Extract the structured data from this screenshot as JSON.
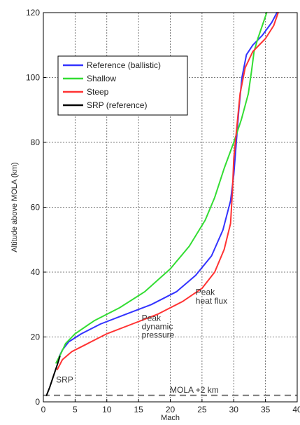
{
  "chart_data": {
    "type": "line",
    "title": "",
    "xlabel": "Mach",
    "ylabel": "Altitude above MOLA (km)",
    "xlim": [
      0,
      40
    ],
    "ylim": [
      0,
      120
    ],
    "xticks": [
      "0",
      "5",
      "10",
      "15",
      "20",
      "25",
      "30",
      "35",
      "40"
    ],
    "yticks": [
      "0",
      "20",
      "40",
      "60",
      "80",
      "100",
      "120"
    ],
    "grid": true,
    "legend_position": "top-left",
    "series": [
      {
        "name": "Reference (ballistic)",
        "color": "#3333ff",
        "x": [
          2.5,
          3,
          4,
          6,
          9,
          13,
          17,
          21,
          24,
          26.5,
          28.3,
          29.5,
          30,
          30.4,
          30.8,
          31.3,
          32,
          33,
          34.5,
          36,
          36.8
        ],
        "y": [
          14,
          16,
          18.5,
          21,
          24,
          27,
          30,
          34,
          39,
          45,
          53,
          62,
          70,
          80,
          90,
          100,
          107,
          110,
          113,
          117,
          120
        ]
      },
      {
        "name": "Shallow",
        "color": "#33dd33",
        "x": [
          2,
          2.8,
          3.5,
          5,
          8,
          12,
          16,
          20,
          23,
          25.5,
          27,
          28.5,
          30,
          31.2,
          32.3,
          32.8,
          33.2,
          33.8,
          34.5,
          35.2
        ],
        "y": [
          12,
          15,
          18,
          21,
          25,
          29,
          34,
          41,
          48,
          56,
          63,
          72,
          80,
          87,
          95,
          102,
          108,
          112,
          116,
          120
        ]
      },
      {
        "name": "Steep",
        "color": "#ff3333",
        "x": [
          2.2,
          3,
          4.5,
          7,
          10,
          14,
          18,
          22,
          25,
          27,
          28.5,
          29.5,
          29.8,
          30,
          30.5,
          31,
          31.8,
          33,
          35,
          36.3,
          37
        ],
        "y": [
          10,
          13,
          15.5,
          18,
          21,
          24,
          27,
          31,
          35,
          40,
          47,
          55,
          65,
          75,
          85,
          95,
          103,
          108,
          112,
          116,
          120
        ]
      },
      {
        "name": "SRP (reference)",
        "color": "#000000",
        "x": [
          0.5,
          1,
          1.6,
          2.2,
          2.6
        ],
        "y": [
          2,
          4.5,
          8,
          11.5,
          14
        ]
      }
    ],
    "reference_line": {
      "y": 2,
      "label": "MOLA +2 km"
    },
    "annotations": [
      {
        "text": "SRP",
        "x": 2,
        "y": 6
      },
      {
        "text": "Peak",
        "x": 15.5,
        "y": 25
      },
      {
        "text": "dynamic",
        "x": 15.5,
        "y": 22.4
      },
      {
        "text": "pressure",
        "x": 15.5,
        "y": 19.8
      },
      {
        "text": "Peak",
        "x": 24,
        "y": 33
      },
      {
        "text": "heat flux",
        "x": 24,
        "y": 30.3
      }
    ]
  }
}
